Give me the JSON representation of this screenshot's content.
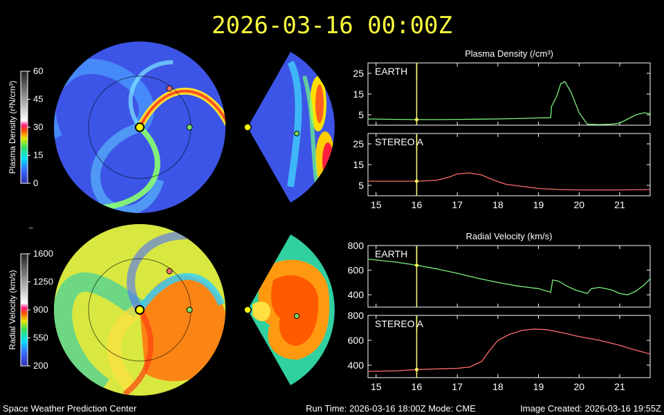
{
  "header": {
    "timestamp": "2026-03-16  00:00Z"
  },
  "footer": {
    "org": "Space Weather Prediction Center",
    "run_time": "Run Time: 2026-03-16 18:00Z  Mode: CME",
    "image_created": "Image Created: 2026-03-16 19:55Z"
  },
  "colors": {
    "earth_marker": "#7ddc6a",
    "stereo_marker": "#f07070",
    "sun": "#ffff00",
    "time_line": "#ffff80",
    "earth_line": "#7cf27c",
    "stereo_line": "#ff6c6c"
  },
  "colorbars": {
    "density": {
      "label": "Plasma Density (r²N/cm³)",
      "ticks": [
        "60",
        "45",
        "30",
        "15",
        "0"
      ],
      "range": [
        0,
        60
      ]
    },
    "velocity": {
      "label": "Radial Velocity (km/s)",
      "ticks": [
        "1600",
        "1250",
        "900",
        "550",
        "200"
      ],
      "range": [
        200,
        1600
      ]
    }
  },
  "chart_data": [
    {
      "type": "line",
      "title": "Plasma Density (/cm³)",
      "panel_label": "EARTH",
      "xlim": [
        14.8,
        21.75
      ],
      "ylim": [
        0,
        30
      ],
      "yticks": [
        "25",
        "15",
        "5"
      ],
      "ytick_values": [
        25,
        15,
        5
      ],
      "series": [
        {
          "color": "#7cf27c",
          "x": [
            14.8,
            15.5,
            16.0,
            16.5,
            17.0,
            17.5,
            18.0,
            18.5,
            19.0,
            19.3,
            19.32,
            19.45,
            19.55,
            19.65,
            19.8,
            20.0,
            20.2,
            20.5,
            20.8,
            21.0,
            21.2,
            21.4,
            21.6,
            21.75
          ],
          "y": [
            3.0,
            2.8,
            2.7,
            2.7,
            2.8,
            2.9,
            3.0,
            3.2,
            3.5,
            3.6,
            9.0,
            14.0,
            20.0,
            21.0,
            16.0,
            6.0,
            0.5,
            0.3,
            0.5,
            1.0,
            3.0,
            5.0,
            6.0,
            5.5
          ]
        }
      ]
    },
    {
      "type": "line",
      "panel_label": "STEREO A",
      "xlim": [
        14.8,
        21.75
      ],
      "ylim": [
        0,
        30
      ],
      "yticks": [
        "25",
        "15",
        "5"
      ],
      "ytick_values": [
        25,
        15,
        5
      ],
      "xticks": [
        "15",
        "16",
        "17",
        "18",
        "19",
        "20",
        "21"
      ],
      "xtick_values": [
        15,
        16,
        17,
        18,
        19,
        20,
        21
      ],
      "series": [
        {
          "color": "#ff6c6c",
          "x": [
            14.8,
            15.5,
            16.0,
            16.5,
            16.8,
            17.0,
            17.3,
            17.6,
            17.9,
            18.2,
            18.6,
            19.0,
            19.5,
            20.0,
            20.5,
            21.0,
            21.75
          ],
          "y": [
            7.0,
            7.0,
            7.0,
            7.5,
            9.0,
            10.5,
            11.0,
            10.0,
            7.5,
            5.5,
            4.5,
            3.5,
            3.0,
            2.8,
            2.8,
            2.8,
            3.0
          ]
        }
      ]
    },
    {
      "type": "line",
      "title": "Radial Velocity (km/s)",
      "panel_label": "EARTH",
      "xlim": [
        14.8,
        21.75
      ],
      "ylim": [
        300,
        800
      ],
      "yticks": [
        "800",
        "600",
        "400"
      ],
      "ytick_values": [
        800,
        600,
        400
      ],
      "series": [
        {
          "color": "#7cf27c",
          "x": [
            14.8,
            15.5,
            16.0,
            16.5,
            17.0,
            17.5,
            18.0,
            18.5,
            19.0,
            19.3,
            19.35,
            19.5,
            19.7,
            19.9,
            20.1,
            20.2,
            20.3,
            20.5,
            20.8,
            21.0,
            21.2,
            21.4,
            21.6,
            21.75
          ],
          "y": [
            690,
            665,
            640,
            610,
            575,
            535,
            500,
            470,
            450,
            420,
            520,
            510,
            470,
            440,
            420,
            410,
            450,
            460,
            440,
            410,
            400,
            430,
            480,
            530
          ]
        }
      ]
    },
    {
      "type": "line",
      "panel_label": "STEREO A",
      "xlim": [
        14.8,
        21.75
      ],
      "ylim": [
        300,
        800
      ],
      "yticks": [
        "800",
        "600",
        "400"
      ],
      "ytick_values": [
        800,
        600,
        400
      ],
      "xticks": [
        "15",
        "16",
        "17",
        "18",
        "19",
        "20",
        "21"
      ],
      "xtick_values": [
        15,
        16,
        17,
        18,
        19,
        20,
        21
      ],
      "series": [
        {
          "color": "#ff6c6c",
          "x": [
            14.8,
            15.5,
            16.0,
            16.5,
            17.0,
            17.3,
            17.6,
            17.8,
            18.0,
            18.3,
            18.6,
            18.9,
            19.2,
            19.6,
            20.0,
            20.5,
            21.0,
            21.4,
            21.75
          ],
          "y": [
            350,
            355,
            365,
            370,
            375,
            385,
            430,
            520,
            600,
            650,
            680,
            690,
            685,
            660,
            630,
            600,
            560,
            520,
            490
          ]
        }
      ]
    }
  ]
}
